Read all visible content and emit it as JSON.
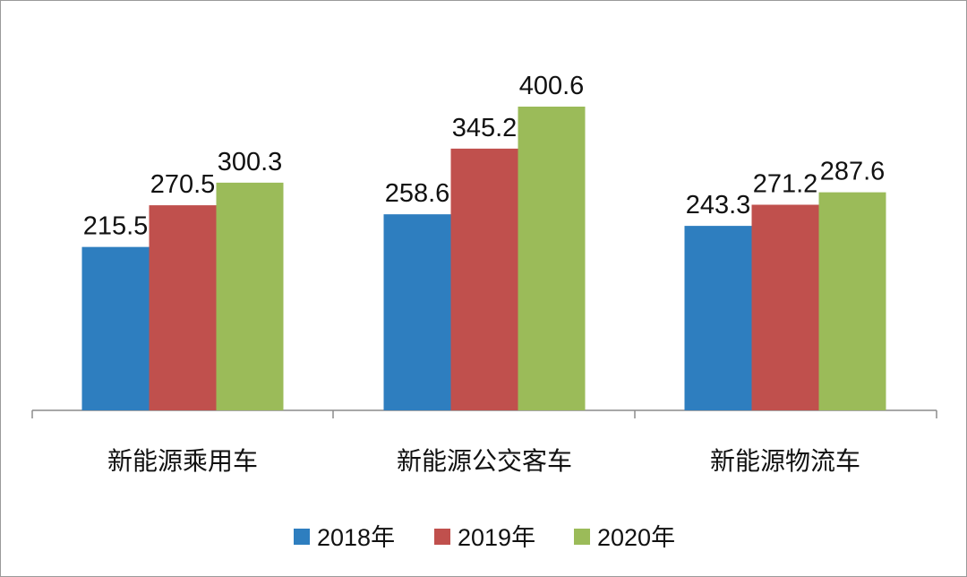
{
  "chart_data": {
    "type": "bar",
    "categories": [
      "新能源乘用车",
      "新能源公交客车",
      "新能源物流车"
    ],
    "series": [
      {
        "name": "2018年",
        "values": [
          215.5,
          258.6,
          243.3
        ],
        "color": "#2e7ebf"
      },
      {
        "name": "2019年",
        "values": [
          270.5,
          345.2,
          271.2
        ],
        "color": "#c0504d"
      },
      {
        "name": "2020年",
        "values": [
          300.3,
          400.6,
          287.6
        ],
        "color": "#9bbb59"
      }
    ],
    "data_labels": true,
    "y_axis_visible": false,
    "grid": false,
    "legend_position": "bottom"
  }
}
